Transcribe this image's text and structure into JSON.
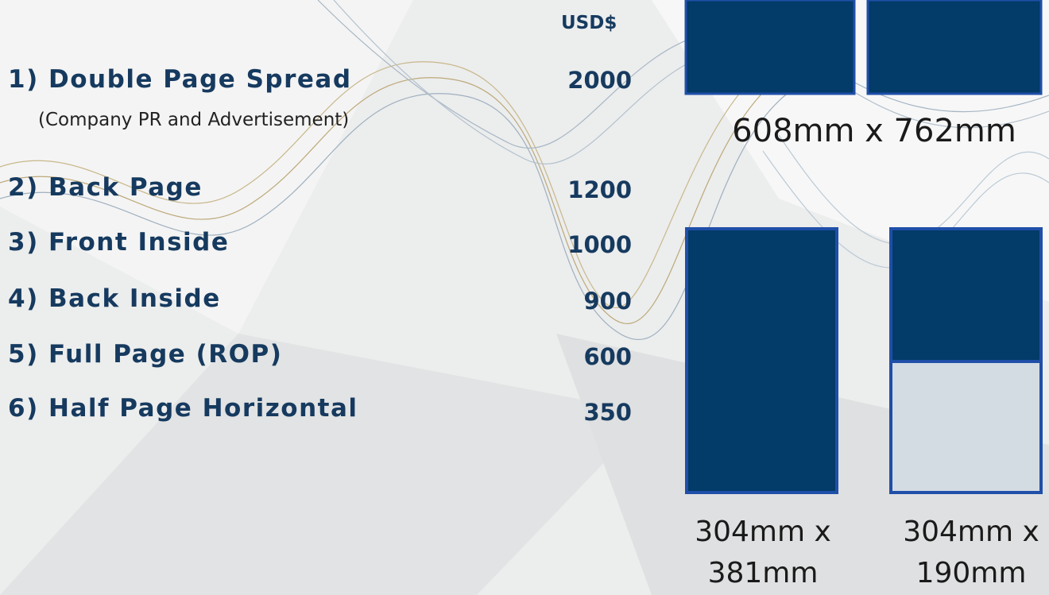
{
  "currency": "USD$",
  "items": [
    {
      "label": "1) Double Page Spread",
      "note": "(Company PR and Advertisement)",
      "price": 2000
    },
    {
      "label": "2) Back Page",
      "price": 1200
    },
    {
      "label": "3) Front Inside",
      "price": 1000
    },
    {
      "label": "4) Back Inside",
      "price": 900
    },
    {
      "label": "5) Full Page (ROP)",
      "price": 600
    },
    {
      "label": "6) Half Page Horizontal",
      "price": 350
    }
  ],
  "sizes": [
    "608mm x 762mm",
    "304mm x 381mm",
    "304mm x 190mm"
  ]
}
